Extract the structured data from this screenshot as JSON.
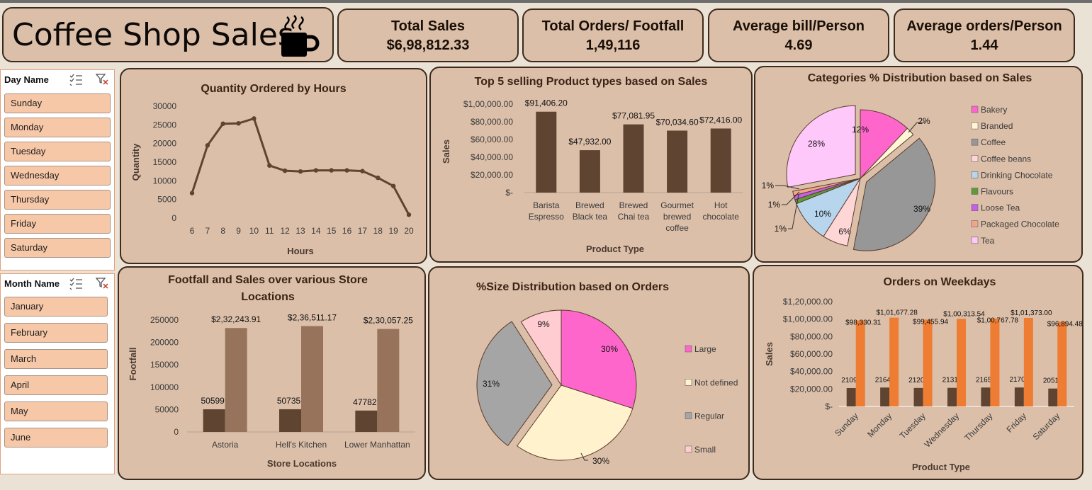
{
  "header": {
    "title": "Coffee Shop Sales",
    "kpis": [
      {
        "label": "Total Sales",
        "value": "$6,98,812.33"
      },
      {
        "label": "Total Orders/ Footfall",
        "value": "1,49,116"
      },
      {
        "label": "Average bill/Person",
        "value": "4.69"
      },
      {
        "label": "Average orders/Person",
        "value": "1.44"
      }
    ]
  },
  "slicers": {
    "day": {
      "title": "Day Name",
      "items": [
        "Sunday",
        "Monday",
        "Tuesday",
        "Wednesday",
        "Thursday",
        "Friday",
        "Saturday"
      ]
    },
    "month": {
      "title": "Month Name",
      "items": [
        "January",
        "February",
        "March",
        "April",
        "May",
        "June"
      ]
    }
  },
  "colors": {
    "dark_brown": "#5e4431",
    "light_brown": "#97735b",
    "orange": "#ee7c32",
    "line": "#5e4431"
  },
  "chart_data": [
    {
      "id": "hours",
      "type": "line",
      "title": "Quantity Ordered by Hours",
      "xlabel": "Hours",
      "ylabel": "Quantity",
      "ylim": [
        0,
        30000
      ],
      "yticks": [
        "30000",
        "25000",
        "20000",
        "15000",
        "10000",
        "5000",
        "0"
      ],
      "x": [
        6,
        7,
        8,
        9,
        10,
        11,
        12,
        13,
        14,
        15,
        16,
        17,
        18,
        19,
        20
      ],
      "values": [
        6700,
        19500,
        25300,
        25400,
        26700,
        14100,
        12700,
        12500,
        12800,
        12800,
        12800,
        12600,
        10800,
        8600,
        900
      ]
    },
    {
      "id": "top5",
      "type": "bar",
      "title": "Top 5 selling Product types based on Sales",
      "xlabel": "Product Type",
      "ylabel": "Sales",
      "ylim": [
        0,
        100000
      ],
      "yticks": [
        "$1,00,000.00",
        "$80,000.00",
        "$60,000.00",
        "$40,000.00",
        "$20,000.00",
        "$-"
      ],
      "categories": [
        [
          "Barista",
          "Espresso"
        ],
        [
          "Brewed",
          "Black tea"
        ],
        [
          "Brewed",
          "Chai tea"
        ],
        [
          "Gourmet",
          "brewed",
          "coffee"
        ],
        [
          "Hot",
          "chocolate"
        ]
      ],
      "values": [
        91406.2,
        47932.0,
        77081.95,
        70034.6,
        72416.0
      ],
      "labels": [
        "$91,406.20",
        "$47,932.00",
        "$77,081.95",
        "$70,034.60",
        "$72,416.00"
      ]
    },
    {
      "id": "categories",
      "type": "pie",
      "title": "Categories % Distribution based on Sales",
      "categories": [
        "Bakery",
        "Branded",
        "Coffee",
        "Coffee beans",
        "Drinking Chocolate",
        "Flavours",
        "Loose Tea",
        "Packaged Chocolate",
        "Tea"
      ],
      "values": [
        12,
        2,
        39,
        6,
        10,
        1,
        1,
        1,
        28
      ],
      "labels": [
        "12%",
        "2%",
        "39%",
        "6%",
        "10%",
        "1%",
        "1%",
        "1%",
        "28%"
      ],
      "colors": [
        "#ff66cc",
        "#fff6d6",
        "#979797",
        "#ffd6d6",
        "#b7d6ee",
        "#5f9a3a",
        "#c660e8",
        "#f2a58a",
        "#ffc8fb"
      ]
    },
    {
      "id": "stores",
      "type": "bar",
      "title": [
        "Footfall and Sales over various Store",
        "Locations"
      ],
      "xlabel": "Store Locations",
      "ylabel": "Footfall",
      "ylim": [
        0,
        250000
      ],
      "yticks": [
        "250000",
        "200000",
        "150000",
        "100000",
        "50000",
        "0"
      ],
      "categories": [
        "Astoria",
        "Hell's Kitchen",
        "Lower Manhattan"
      ],
      "series": [
        {
          "values": [
            50599,
            50735,
            47782
          ],
          "labels": [
            "50599",
            "50735",
            "47782"
          ]
        },
        {
          "values": [
            232243.91,
            236511.17,
            230057.25
          ],
          "labels": [
            "$2,32,243.91",
            "$2,36,511.17",
            "$2,30,057.25"
          ]
        }
      ]
    },
    {
      "id": "sizes",
      "type": "pie",
      "title": "%Size Distribution based on Orders",
      "categories": [
        "Large",
        "Not defined",
        "Regular",
        "Small"
      ],
      "values": [
        30,
        30,
        31,
        9
      ],
      "labels": [
        "30%",
        "30%",
        "31%",
        "9%"
      ],
      "colors": [
        "#ff66cc",
        "#fff2cc",
        "#a5a5a5",
        "#ffccd1"
      ]
    },
    {
      "id": "weekdays",
      "type": "bar",
      "title": "Orders on Weekdays",
      "xlabel": "Product Type",
      "ylabel": "Sales",
      "ylim": [
        0,
        120000
      ],
      "yticks": [
        "$1,20,000.00",
        "$1,00,000.00",
        "$80,000.00",
        "$60,000.00",
        "$40,000.00",
        "$20,000.00",
        "$-"
      ],
      "categories": [
        "Sunday",
        "Monday",
        "Tuesday",
        "Wednesday",
        "Thursday",
        "Friday",
        "Saturday"
      ],
      "series": [
        {
          "values": [
            21096,
            21643,
            21202,
            21310,
            21654,
            21701,
            20510
          ],
          "labels": [
            "21096",
            "21643",
            "21202",
            "21310",
            "21654",
            "21701",
            "20510"
          ]
        },
        {
          "values": [
            98330.31,
            101677.28,
            99455.94,
            100313.54,
            100767.78,
            101373.0,
            96894.48
          ],
          "labels": [
            "$98,330.31",
            "$1,01,677.28",
            "$99,455.94",
            "$1,00,313.54",
            "$1,00,767.78",
            "$1,01,373.00",
            "$96,894.48"
          ]
        }
      ]
    }
  ]
}
